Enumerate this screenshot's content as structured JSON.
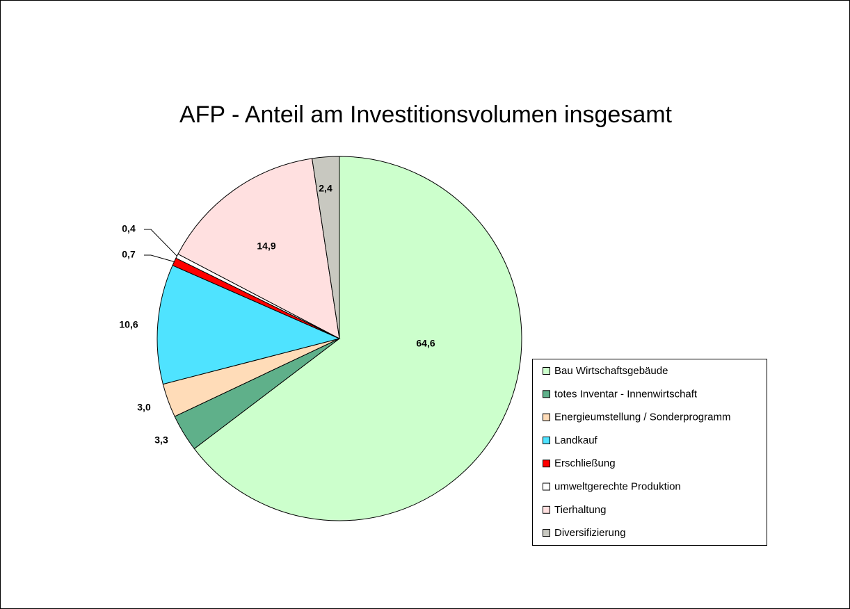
{
  "chart_data": {
    "type": "pie",
    "title": "AFP - Anteil am  Investitionsvolumen insgesamt",
    "categories": [
      "Bau Wirtschaftsgebäude",
      "totes Inventar - Innenwirtschaft",
      "Energieumstellung / Sonderprogramm",
      "Landkauf",
      "Erschließung",
      "umweltgerechte Produktion",
      "Tierhaltung",
      "Diversifizierung"
    ],
    "values": [
      64.6,
      3.3,
      3.0,
      10.6,
      0.7,
      0.4,
      14.9,
      2.4
    ],
    "value_labels": [
      "64,6",
      "3,3",
      "3,0",
      "10,6",
      "0,7",
      "0,4",
      "14,9",
      "2,4"
    ],
    "colors": [
      "#ccffcc",
      "#5fb08a",
      "#ffdcb8",
      "#4fe3ff",
      "#ff0000",
      "#ffffff",
      "#ffe0e0",
      "#c8c8c0"
    ],
    "legend": "right"
  }
}
